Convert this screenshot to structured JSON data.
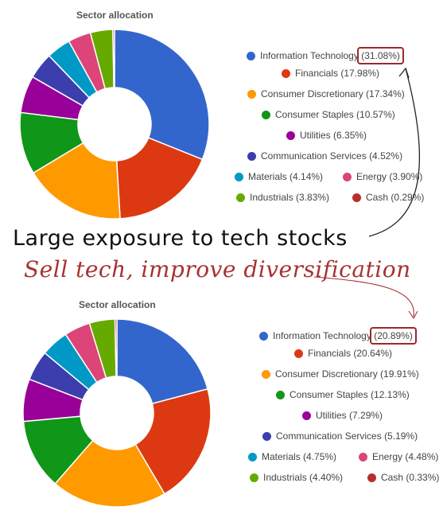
{
  "chart_data": [
    {
      "type": "pie",
      "title": "Sector allocation",
      "categories": [
        "Information Technology",
        "Financials",
        "Consumer Discretionary",
        "Consumer Staples",
        "Utilities",
        "Communication Services",
        "Materials",
        "Energy",
        "Industrials",
        "Cash"
      ],
      "values": [
        31.08,
        17.98,
        17.34,
        10.57,
        6.35,
        4.52,
        4.14,
        3.9,
        3.83,
        0.29
      ],
      "labels": [
        "(31.08%)",
        "(17.98%)",
        "(17.34%)",
        "(10.57%)",
        "(6.35%)",
        "(4.52%)",
        "(4.14%)",
        "(3.90%)",
        "(3.83%)",
        "(0.29%)"
      ],
      "legend_position": "right",
      "donut": true
    },
    {
      "type": "pie",
      "title": "Sector allocation",
      "categories": [
        "Information Technology",
        "Financials",
        "Consumer Discretionary",
        "Consumer Staples",
        "Utilities",
        "Communication Services",
        "Materials",
        "Energy",
        "Industrials",
        "Cash"
      ],
      "values": [
        20.89,
        20.64,
        19.91,
        12.13,
        7.29,
        5.19,
        4.75,
        4.48,
        4.4,
        0.33
      ],
      "labels": [
        "(20.89%)",
        "(20.64%)",
        "(19.91%)",
        "(12.13%)",
        "(7.29%)",
        "(5.19%)",
        "(4.75%)",
        "(4.48%)",
        "(4.40%)",
        "(0.33%)"
      ],
      "legend_position": "right",
      "donut": true
    }
  ],
  "colors": [
    "#3366cc",
    "#dc3912",
    "#ff9900",
    "#109618",
    "#990099",
    "#3b3eac",
    "#0099c6",
    "#dd4477",
    "#66aa00",
    "#b82e2e"
  ],
  "highlight_color": "#9b2a2a",
  "annotations": {
    "note_1": "Large exposure to tech stocks",
    "note_2": "Sell tech, improve diversification"
  }
}
